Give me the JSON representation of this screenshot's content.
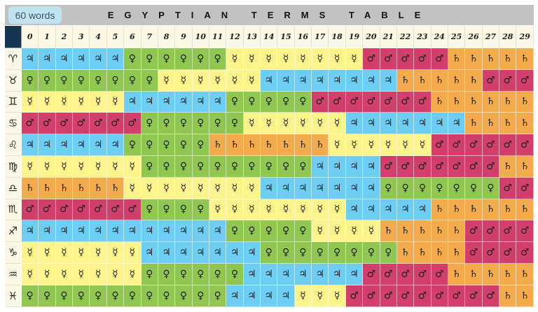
{
  "title": "EGYPTIAN TERMS TABLE",
  "degrees": [
    "0",
    "1",
    "2",
    "3",
    "4",
    "5",
    "6",
    "7",
    "8",
    "9",
    "10",
    "11",
    "12",
    "13",
    "14",
    "15",
    "16",
    "17",
    "18",
    "19",
    "20",
    "21",
    "22",
    "23",
    "24",
    "25",
    "26",
    "27",
    "28",
    "29"
  ],
  "planets": {
    "jupiter": {
      "glyph": "♃",
      "color": "#6dcdf3"
    },
    "venus": {
      "glyph": "♀",
      "color": "#8fc750"
    },
    "mercury": {
      "glyph": "☿",
      "color": "#fdf58c"
    },
    "mars": {
      "glyph": "♂",
      "color": "#d23f6c"
    },
    "saturn": {
      "glyph": "♄",
      "color": "#f3ab4b"
    }
  },
  "rows": [
    {
      "sign": "aries",
      "glyph": "♈",
      "terms": [
        [
          "jupiter",
          6
        ],
        [
          "venus",
          6
        ],
        [
          "mercury",
          8
        ],
        [
          "mars",
          5
        ],
        [
          "saturn",
          5
        ]
      ]
    },
    {
      "sign": "taurus",
      "glyph": "♉",
      "terms": [
        [
          "venus",
          8
        ],
        [
          "mercury",
          6
        ],
        [
          "jupiter",
          8
        ],
        [
          "saturn",
          5
        ],
        [
          "mars",
          3
        ]
      ]
    },
    {
      "sign": "gemini",
      "glyph": "♊",
      "terms": [
        [
          "mercury",
          6
        ],
        [
          "jupiter",
          6
        ],
        [
          "venus",
          5
        ],
        [
          "mars",
          7
        ],
        [
          "saturn",
          6
        ]
      ]
    },
    {
      "sign": "cancer",
      "glyph": "♋",
      "terms": [
        [
          "mars",
          7
        ],
        [
          "venus",
          6
        ],
        [
          "mercury",
          6
        ],
        [
          "jupiter",
          7
        ],
        [
          "saturn",
          4
        ]
      ]
    },
    {
      "sign": "leo",
      "glyph": "♌",
      "terms": [
        [
          "jupiter",
          6
        ],
        [
          "venus",
          5
        ],
        [
          "saturn",
          7
        ],
        [
          "mercury",
          6
        ],
        [
          "mars",
          6
        ]
      ]
    },
    {
      "sign": "virgo",
      "glyph": "♍",
      "terms": [
        [
          "mercury",
          7
        ],
        [
          "venus",
          10
        ],
        [
          "jupiter",
          4
        ],
        [
          "mars",
          7
        ],
        [
          "saturn",
          2
        ]
      ]
    },
    {
      "sign": "libra",
      "glyph": "♎",
      "terms": [
        [
          "saturn",
          6
        ],
        [
          "mercury",
          8
        ],
        [
          "jupiter",
          7
        ],
        [
          "venus",
          7
        ],
        [
          "mars",
          2
        ]
      ]
    },
    {
      "sign": "scorpio",
      "glyph": "♏",
      "terms": [
        [
          "mars",
          7
        ],
        [
          "venus",
          4
        ],
        [
          "mercury",
          8
        ],
        [
          "jupiter",
          5
        ],
        [
          "saturn",
          6
        ]
      ]
    },
    {
      "sign": "sagittarius",
      "glyph": "♐",
      "terms": [
        [
          "jupiter",
          12
        ],
        [
          "venus",
          5
        ],
        [
          "mercury",
          4
        ],
        [
          "saturn",
          5
        ],
        [
          "mars",
          4
        ]
      ]
    },
    {
      "sign": "capricorn",
      "glyph": "♑",
      "terms": [
        [
          "mercury",
          7
        ],
        [
          "jupiter",
          7
        ],
        [
          "venus",
          8
        ],
        [
          "saturn",
          4
        ],
        [
          "mars",
          4
        ]
      ]
    },
    {
      "sign": "aquarius",
      "glyph": "♒",
      "terms": [
        [
          "mercury",
          7
        ],
        [
          "venus",
          6
        ],
        [
          "jupiter",
          7
        ],
        [
          "mars",
          5
        ],
        [
          "saturn",
          5
        ]
      ]
    },
    {
      "sign": "pisces",
      "glyph": "♓",
      "terms": [
        [
          "venus",
          12
        ],
        [
          "jupiter",
          4
        ],
        [
          "mercury",
          3
        ],
        [
          "mars",
          9
        ],
        [
          "saturn",
          2
        ]
      ]
    }
  ],
  "badge": "60 words"
}
